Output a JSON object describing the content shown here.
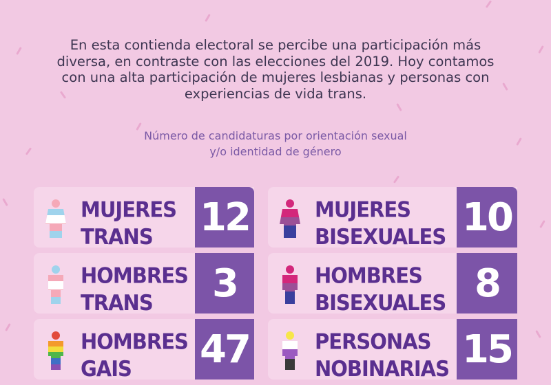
{
  "intro": "En esta contienda electoral se percibe una participación más diversa, en contraste con las elecciones del 2019. Hoy contamos con una alta participación de mujeres lesbianas y personas con experiencias de vida trans.",
  "subtitle_line1": "Número de candidaturas por orientación sexual",
  "subtitle_line2": "y/o identidad de género",
  "colors": {
    "background": "#f2c9e3",
    "card": "#f6d6ea",
    "number_box": "#7c54a8",
    "label": "#5a2f8f",
    "intro_text": "#3d3551",
    "subtitle_text": "#7b5aa6"
  },
  "left_cards": [
    {
      "line1": "MUJERES",
      "line2": "TRANS",
      "count": "12",
      "icon": "trans-flag-woman-icon"
    },
    {
      "line1": "HOMBRES",
      "line2": "TRANS",
      "count": "3",
      "icon": "trans-flag-man-icon"
    },
    {
      "line1": "HOMBRES",
      "line2": "GAIS",
      "count": "47",
      "icon": "rainbow-flag-man-icon"
    }
  ],
  "right_cards": [
    {
      "line1": "MUJERES",
      "line2": "BISEXUALES",
      "count": "10",
      "icon": "bisexual-flag-woman-icon"
    },
    {
      "line1": "HOMBRES",
      "line2": "BISEXUALES",
      "count": "8",
      "icon": "bisexual-flag-man-icon"
    },
    {
      "line1": "PERSONAS",
      "line2": "NOBINARIAS",
      "count": "15",
      "icon": "nonbinary-flag-person-icon"
    }
  ]
}
